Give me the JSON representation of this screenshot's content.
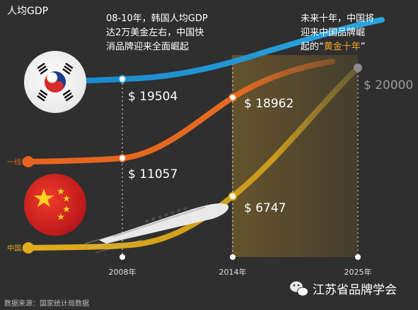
{
  "chart_data": {
    "type": "line",
    "title": "人均GDP",
    "x": [
      "2008年",
      "2014年",
      "2025年"
    ],
    "series": [
      {
        "name": "",
        "values": [
          19504,
          null,
          null
        ]
      },
      {
        "name": "一线城市",
        "values": [
          11057,
          18962,
          null
        ]
      },
      {
        "name": "中国总体",
        "values": [
          null,
          6747,
          20000
        ]
      }
    ],
    "value_labels": [
      "$ 19504",
      "$ 18962",
      "$ 11057",
      "$ 6747",
      "$ 20000"
    ],
    "annotations": [
      "08-10年，韩国人均GDP",
      "达2万美金左右，中国快",
      "消品牌迎来全面崛起",
      "未来十年，中国将",
      "迎来中国品牌崛",
      "起的“",
      "黄金十年",
      "”"
    ],
    "source": "数据来源：国家统计局数据",
    "watermark": "江苏省品牌学会",
    "colors": {
      "background": "#2f2f2f",
      "korea_line": "#1f9ad6",
      "tier1_line": "#e8641e",
      "china_line": "#e0ad1c",
      "highlight_band": "#6e5a2c",
      "accent_text": "#f5a623",
      "gray_label": "#9a9a9a"
    },
    "icons": [
      "south-korea-flag-icon",
      "china-flag-icon",
      "bullet-train-icon",
      "wechat-icon"
    ]
  }
}
